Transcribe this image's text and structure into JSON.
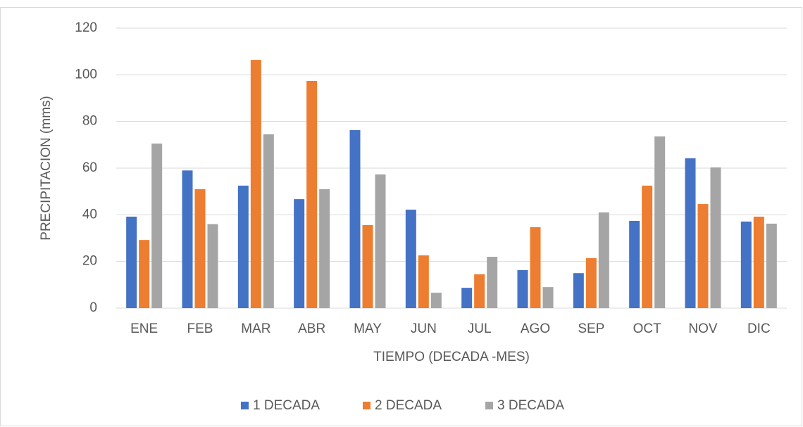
{
  "chart_data": {
    "type": "bar",
    "xlabel": "TIEMPO (DECADA -MES)",
    "ylabel": "PRECIPITACION (mms)",
    "categories": [
      "ENE",
      "FEB",
      "MAR",
      "ABR",
      "MAY",
      "JUN",
      "JUL",
      "AGO",
      "SEP",
      "OCT",
      "NOV",
      "DIC"
    ],
    "series": [
      {
        "name": "1 DECADA",
        "color": "#4472c4",
        "values": [
          39.2,
          59,
          52.5,
          46.7,
          76.3,
          42.2,
          8.7,
          16.3,
          15,
          37.4,
          64.2,
          37.1
        ]
      },
      {
        "name": "2 DECADA",
        "color": "#ed7d31",
        "values": [
          29.2,
          51,
          106.4,
          97.4,
          35.6,
          22.6,
          14.5,
          34.7,
          21.4,
          52.5,
          44.6,
          39.2
        ]
      },
      {
        "name": "3 DECADA",
        "color": "#a5a5a5",
        "values": [
          70.5,
          36,
          74.5,
          51,
          57.3,
          6.6,
          22,
          9,
          41,
          73.6,
          60.3,
          36.2
        ]
      }
    ],
    "ylim": [
      0,
      120
    ],
    "yticks": [
      0,
      20,
      40,
      60,
      80,
      100,
      120
    ],
    "grid": true,
    "legend": "bottom"
  }
}
